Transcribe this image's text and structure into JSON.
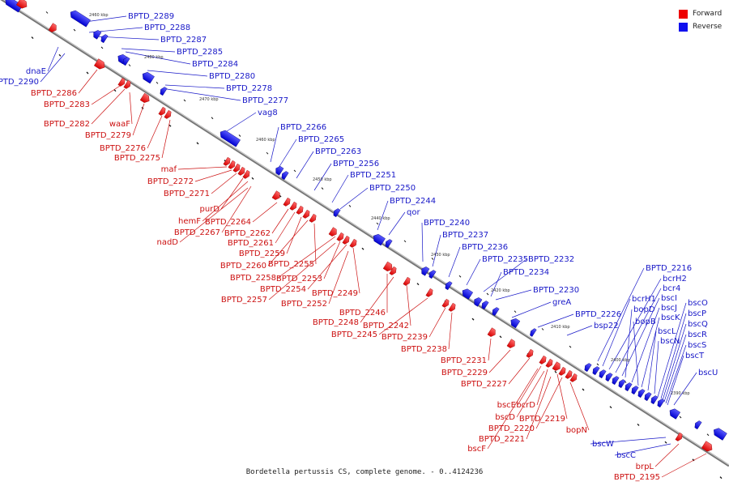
{
  "title": "Bordetella pertussis CS, complete genome. - 0..4124236",
  "legend": [
    {
      "label": "Forward",
      "color": "#ee0000"
    },
    {
      "label": "Reverse",
      "color": "#1010ee"
    }
  ],
  "colors": {
    "forward": "#ee0000",
    "reverse": "#1010ee",
    "backbone": "#808080"
  },
  "ticks": [
    "2460 kbp",
    "2480 kbp",
    "2470 kbp",
    "2460 kbp",
    "2450 kbp",
    "2440 kbp",
    "2430 kbp",
    "2420 kbp",
    "2410 kbp",
    "2400 kbp",
    "2390 kbp"
  ],
  "reverse_labels": [
    "BPTD_2289",
    "BPTD_2288",
    "BPTD_2287",
    "BPTD_2285",
    "BPTD_2284",
    "BPTD_2280",
    "BPTD_2278",
    "BPTD_2277",
    "vag8",
    "dnaE",
    "BPTD_2290",
    "BPTD_2266",
    "BPTD_2265",
    "BPTD_2263",
    "BPTD_2256",
    "BPTD_2251",
    "BPTD_2250",
    "BPTD_2244",
    "qor",
    "BPTD_2240",
    "BPTD_2237",
    "BPTD_2236",
    "BPTD_2235",
    "BPTD_2232",
    "BPTD_2234",
    "BPTD_2230",
    "greA",
    "BPTD_2226",
    "bsp22",
    "BPTD_2216",
    "bcrH1",
    "bcrH2",
    "bcr4",
    "bopD",
    "bscI",
    "bscJ",
    "bopB",
    "bscK",
    "bscL",
    "bscN",
    "bscO",
    "bscP",
    "bscQ",
    "bscR",
    "bscS",
    "bscT",
    "bscU",
    "bscW",
    "bscC"
  ],
  "forward_labels": [
    "BPTD_2286",
    "BPTD_2283",
    "BPTD_2282",
    "waaF",
    "BPTD_2279",
    "BPTD_2276",
    "BPTD_2275",
    "maf",
    "BPTD_2272",
    "BPTD_2271",
    "purD",
    "hemF",
    "BPTD_2264",
    "BPTD_2267",
    "nadD",
    "BPTD_2262",
    "BPTD_2261",
    "BPTD_2259",
    "BPTD_2260",
    "BPTD_2255",
    "BPTD_2258",
    "BPTD_2253",
    "BPTD_2254",
    "BPTD_2249",
    "BPTD_2257",
    "BPTD_2252",
    "BPTD_2246",
    "BPTD_2248",
    "BPTD_2242",
    "BPTD_2245",
    "BPTD_2239",
    "BPTD_2238",
    "BPTD_2231",
    "BPTD_2229",
    "BPTD_2227",
    "bscE",
    "bcrD",
    "bscD",
    "BPTD_2219",
    "BPTD_2220",
    "bopN",
    "BPTD_2221",
    "bscF",
    "brpL",
    "BPTD_2195"
  ]
}
